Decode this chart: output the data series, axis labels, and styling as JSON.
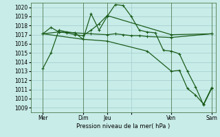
{
  "background_color": "#c8ece8",
  "grid_color": "#a0cccc",
  "line_color": "#1a5c1a",
  "title": "Pression niveau de la mer( hPa )",
  "ylim": [
    1008.5,
    1020.5
  ],
  "yticks": [
    1009,
    1010,
    1011,
    1012,
    1013,
    1014,
    1015,
    1016,
    1017,
    1018,
    1019,
    1020
  ],
  "xlim": [
    -0.5,
    22.5
  ],
  "xtick_positions": [
    1,
    6,
    9,
    12,
    17,
    22
  ],
  "xtick_labels": [
    "Mer",
    "Dim",
    "Jeu",
    "",
    "Ven",
    "Sam"
  ],
  "vlines_x": [
    1,
    6,
    9,
    17,
    22
  ],
  "series1_x": [
    1,
    2,
    3,
    4,
    5,
    6,
    7,
    8,
    9,
    10,
    11,
    12,
    13,
    14,
    15,
    16,
    17,
    18,
    19,
    20,
    21,
    22
  ],
  "series1_y": [
    1013.3,
    1015.0,
    1017.5,
    1017.3,
    1017.2,
    1016.5,
    1019.3,
    1017.5,
    1019.0,
    1020.3,
    1020.2,
    1019.0,
    1017.5,
    1017.3,
    1017.2,
    1015.3,
    1015.2,
    1014.9,
    1013.0,
    1011.3,
    1009.3,
    1011.1
  ],
  "series2_x": [
    1,
    3,
    5,
    7,
    9,
    10,
    11,
    12,
    13,
    14,
    17,
    22
  ],
  "series2_y": [
    1017.1,
    1017.3,
    1017.2,
    1017.1,
    1017.0,
    1017.1,
    1017.0,
    1016.9,
    1016.9,
    1016.8,
    1016.7,
    1017.1
  ],
  "series3_x": [
    1,
    2,
    3,
    4,
    5,
    6,
    7,
    8,
    9,
    17,
    22
  ],
  "series3_y": [
    1017.1,
    1017.8,
    1017.3,
    1017.2,
    1017.0,
    1016.9,
    1017.5,
    1018.2,
    1019.1,
    1017.0,
    1017.1
  ],
  "series4_x": [
    1,
    6,
    9,
    14,
    17,
    18,
    19,
    20,
    21,
    22
  ],
  "series4_y": [
    1017.1,
    1016.5,
    1016.3,
    1015.2,
    1013.0,
    1013.1,
    1011.1,
    1010.4,
    1009.4,
    1011.2
  ]
}
